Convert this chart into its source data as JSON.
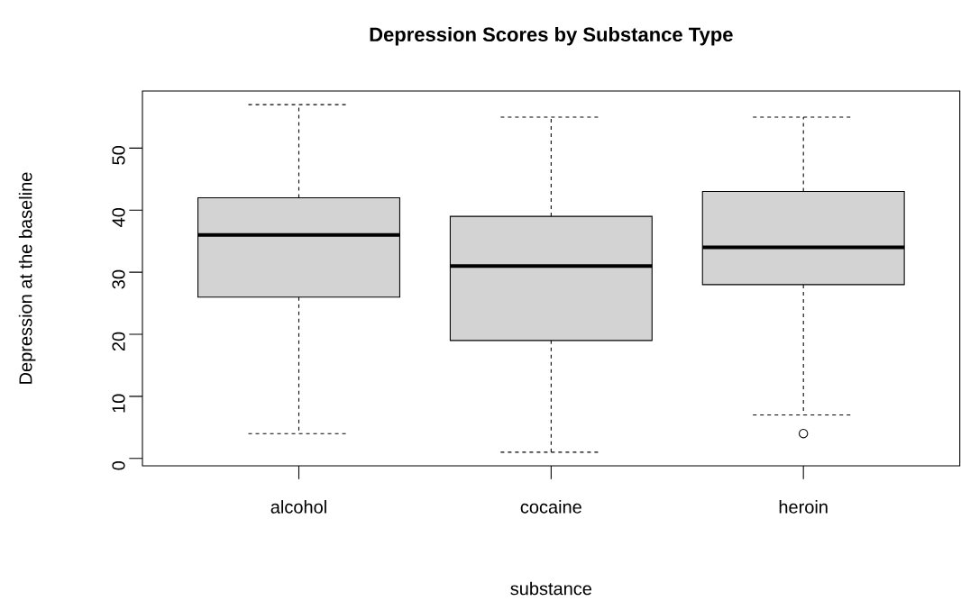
{
  "chart_data": {
    "type": "box",
    "title": "Depression Scores by Substance Type",
    "xlabel": "substance",
    "ylabel": "Depression at the baseline",
    "categories": [
      "alcohol",
      "cocaine",
      "heroin"
    ],
    "color": "#d3d3d3",
    "boxes": [
      {
        "low": 4,
        "q1": 26,
        "median": 36,
        "q3": 42,
        "high": 57
      },
      {
        "low": 1,
        "q1": 19,
        "median": 31,
        "q3": 39,
        "high": 55
      },
      {
        "low": 7,
        "q1": 28,
        "median": 34,
        "q3": 43,
        "high": 55,
        "outliers": [
          4
        ]
      }
    ],
    "ylim": [
      -1.2,
      59.2
    ],
    "yticks": [
      0,
      10,
      20,
      30,
      40,
      50
    ]
  }
}
